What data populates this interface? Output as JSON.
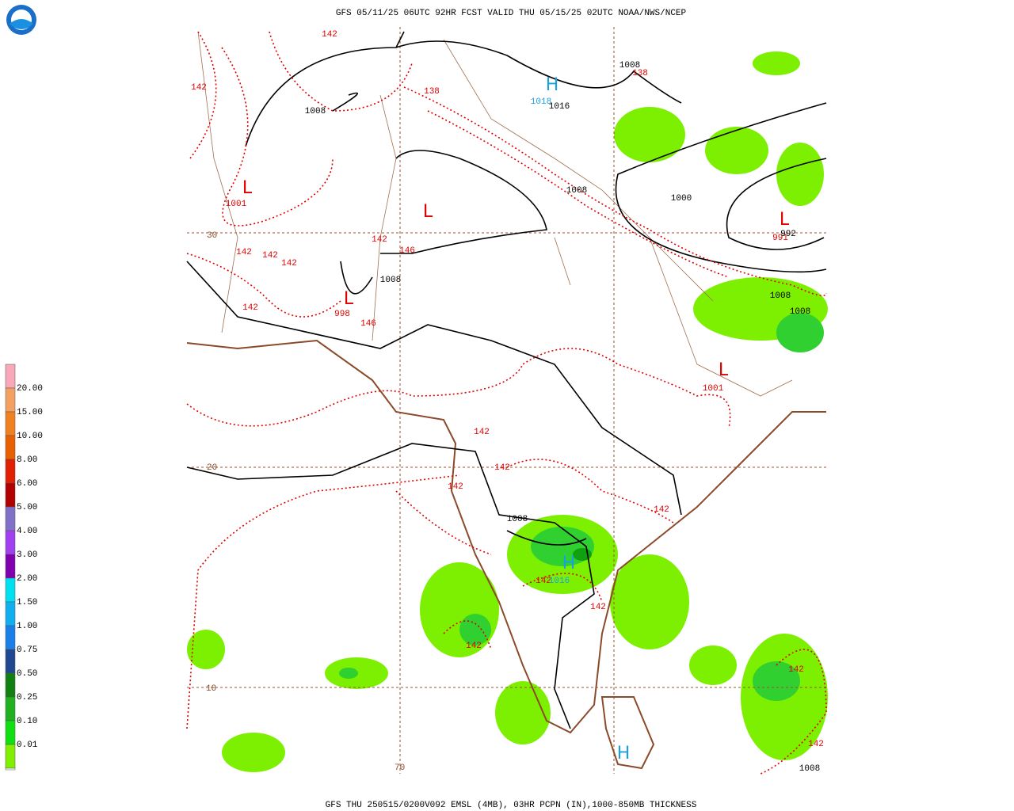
{
  "header": {
    "title": "GFS 05/11/25 06UTC 92HR FCST VALID THU 05/15/25 02UTC NOAA/NWS/NCEP"
  },
  "footer": {
    "caption": "GFS THU 250515/0200V092 EMSL (4MB), 03HR PCPN (IN),1000-850MB THICKNESS"
  },
  "legend": {
    "labels": [
      "20.00",
      "15.00",
      "10.00",
      "8.00",
      "6.00",
      "5.00",
      "4.00",
      "3.00",
      "2.00",
      "1.50",
      "1.00",
      "0.75",
      "0.50",
      "0.25",
      "0.10",
      "0.01"
    ],
    "colors": [
      "#f8a8b8",
      "#f4a060",
      "#f08020",
      "#e86000",
      "#e02000",
      "#b00000",
      "#8070c8",
      "#a040f0",
      "#8000b0",
      "#00e0f0",
      "#10b0f0",
      "#1880e8",
      "#204890",
      "#108010",
      "#20b020",
      "#10e010",
      "#80f000"
    ]
  },
  "map": {
    "grid_labels": [
      "30",
      "20",
      "10",
      "70"
    ],
    "thickness_labels": [
      "142",
      "142",
      "142",
      "142",
      "142",
      "142",
      "142",
      "142",
      "142",
      "142",
      "142",
      "142",
      "142",
      "142",
      "142",
      "142",
      "138",
      "138",
      "146",
      "146"
    ],
    "low_letters": [
      "L",
      "L",
      "L",
      "L",
      "L"
    ],
    "low_values": [
      "1001",
      "1001",
      "998",
      "991"
    ],
    "isobar_labels": [
      "1008",
      "1008",
      "1008",
      "1008",
      "1008",
      "1008",
      "1008",
      "1008",
      "1016",
      "1000",
      "992"
    ],
    "high_letters": [
      "H",
      "H",
      "H"
    ],
    "high_values": [
      "1018",
      "1016"
    ]
  }
}
